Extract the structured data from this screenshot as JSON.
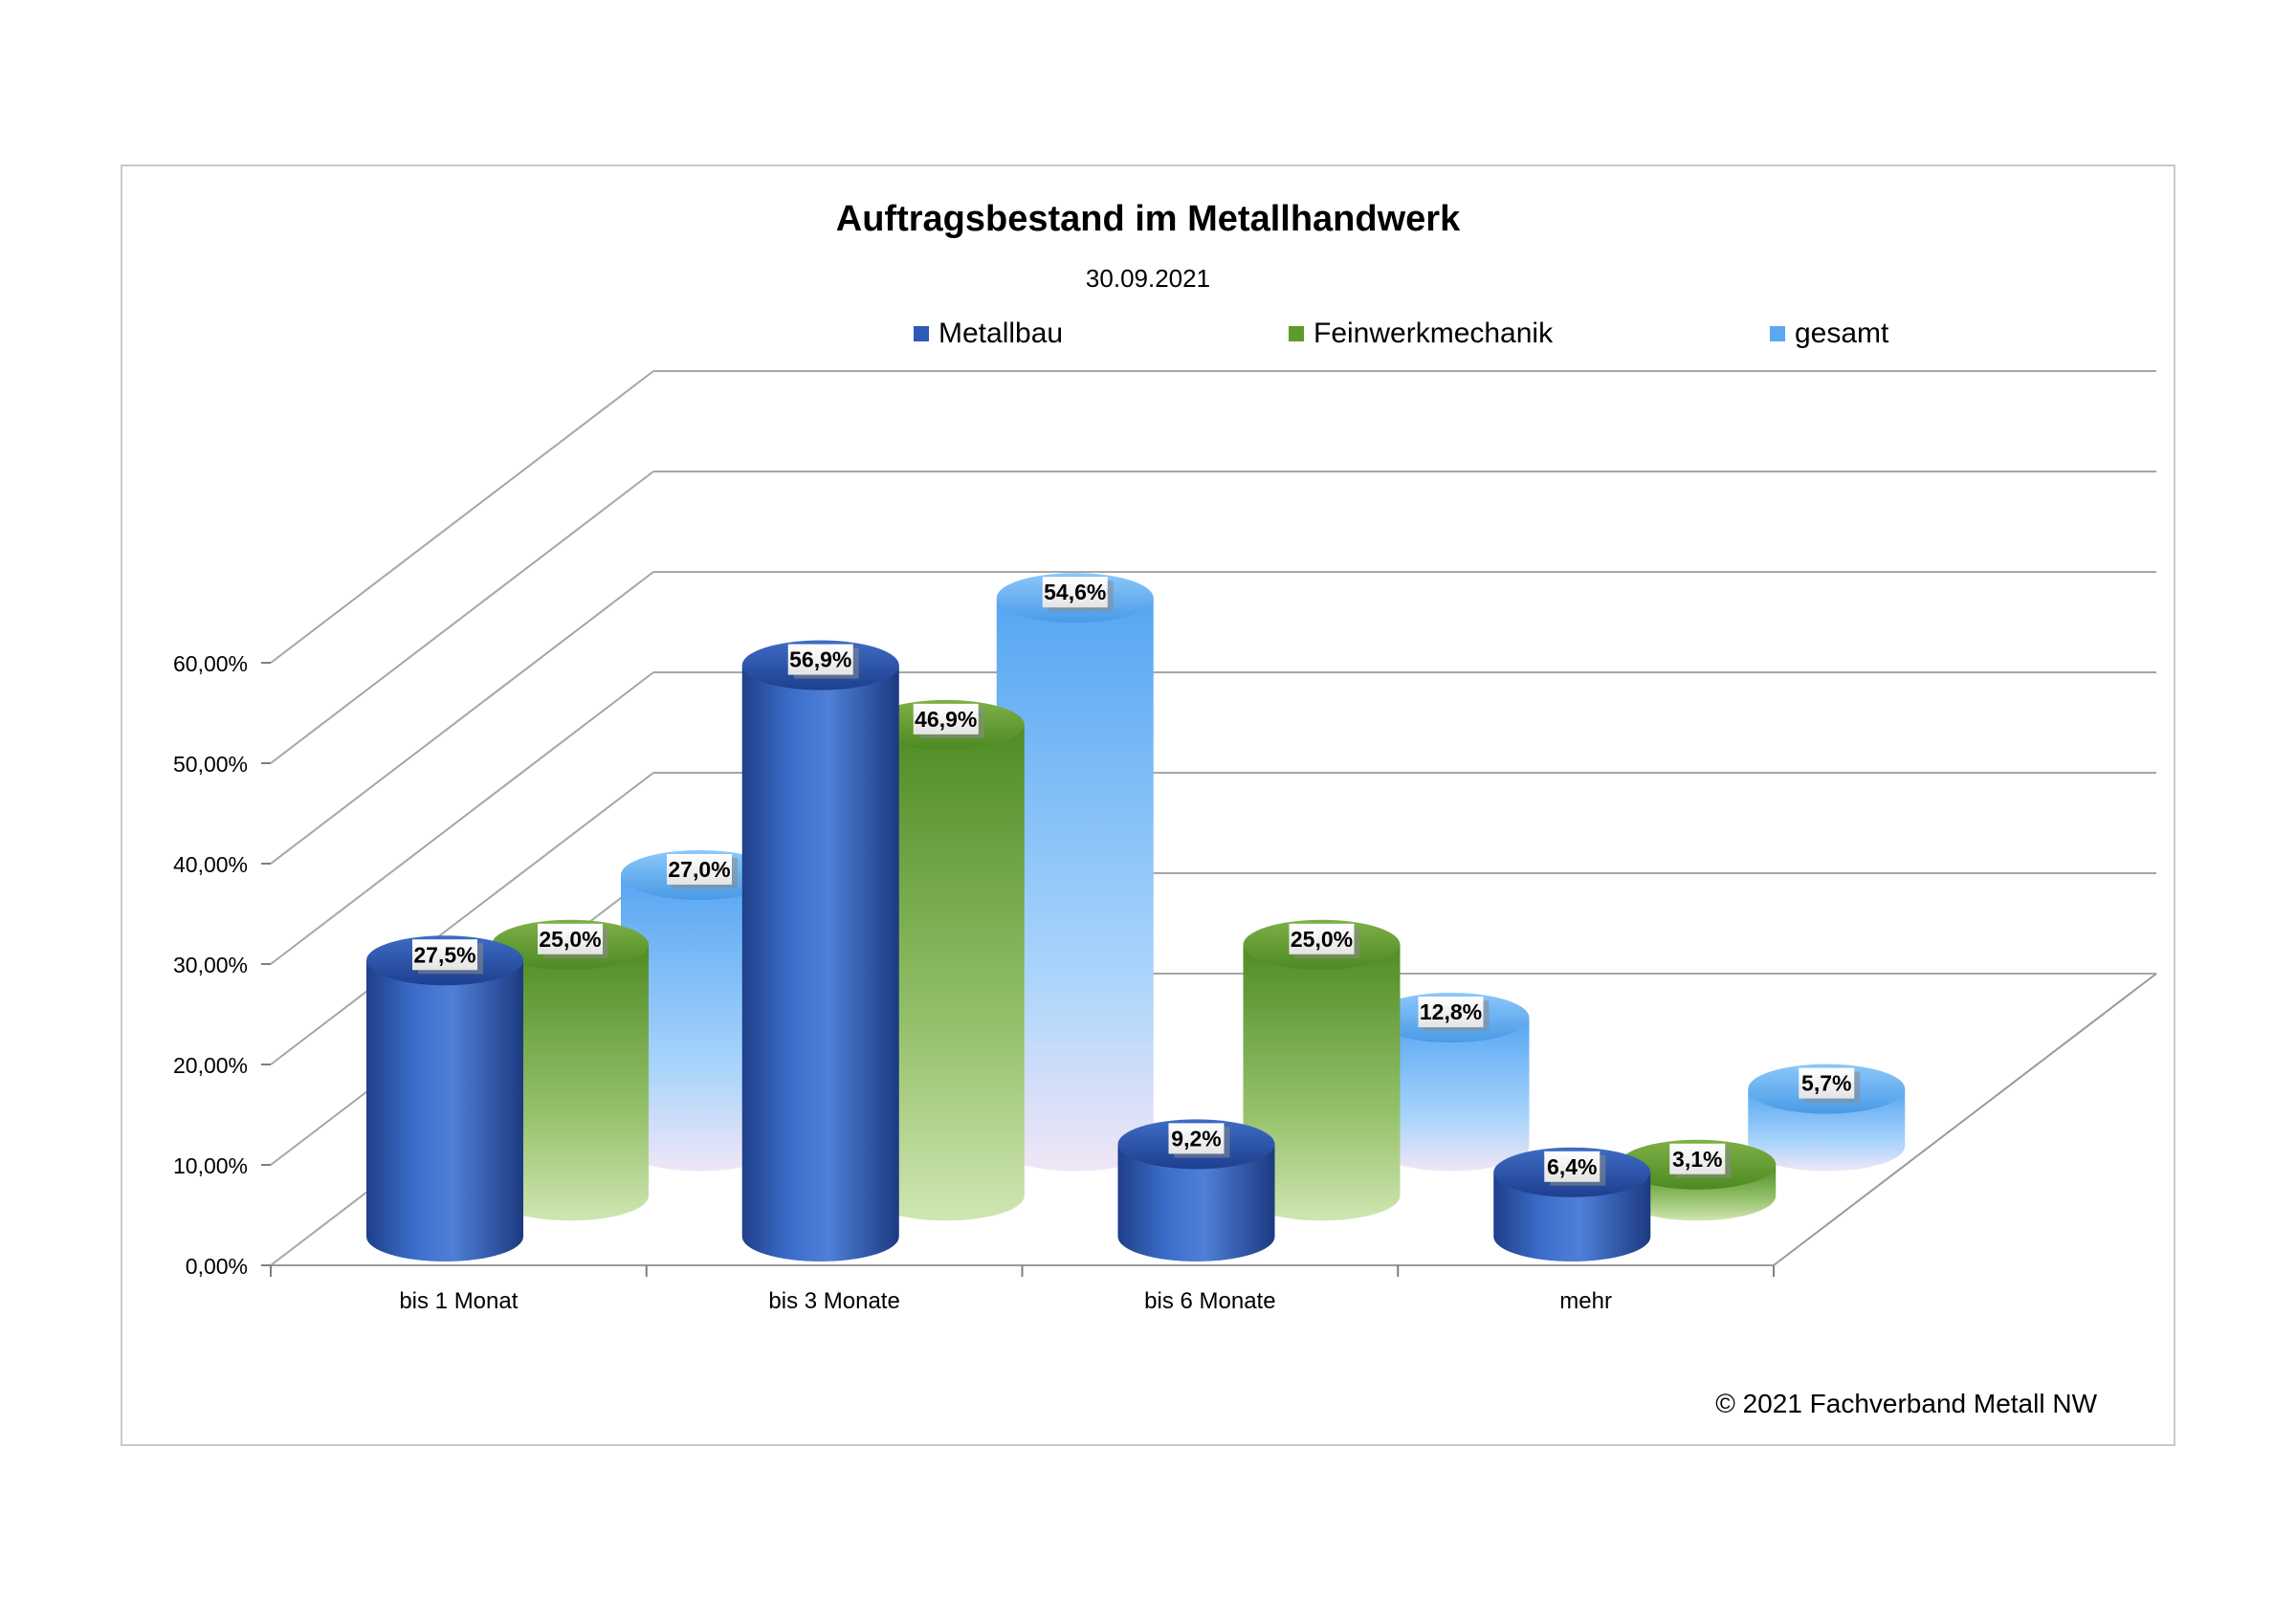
{
  "chart_data": {
    "type": "bar",
    "title": "Auftragsbestand im Metallhandwerk",
    "subtitle": "30.09.2021",
    "categories": [
      "bis 1 Monat",
      "bis 3 Monate",
      "bis 6 Monate",
      "mehr"
    ],
    "series": [
      {
        "name": "Metallbau",
        "values": [
          27.5,
          56.9,
          9.2,
          6.4
        ],
        "labels": [
          "27,5%",
          "56,9%",
          "9,2%",
          "6,4%"
        ],
        "color": "#2e5bb8"
      },
      {
        "name": "Feinwerkmechanik",
        "values": [
          25.0,
          46.9,
          25.0,
          3.1
        ],
        "labels": [
          "25,0%",
          "46,9%",
          "25,0%",
          "3,1%"
        ],
        "color": "#5f9a2c"
      },
      {
        "name": "gesamt",
        "values": [
          27.0,
          54.6,
          12.8,
          5.7
        ],
        "labels": [
          "27,0%",
          "54,6%",
          "12,8%",
          "5,7%"
        ],
        "color": "#5aa8f0"
      }
    ],
    "ylim": [
      0,
      60
    ],
    "yticks": [
      "0,00%",
      "10,00%",
      "20,00%",
      "30,00%",
      "40,00%",
      "50,00%",
      "60,00%"
    ],
    "legend_position": "top",
    "grid": true,
    "style": "3d cylinders"
  },
  "copyright": "© 2021 Fachverband Metall NW"
}
